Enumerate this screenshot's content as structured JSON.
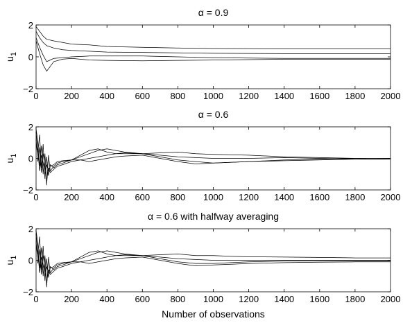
{
  "figure": {
    "xlabel": "Number of observations"
  },
  "chart_data": [
    {
      "type": "line",
      "title": "α = 0.9",
      "ylabel_main": "u",
      "ylabel_sub": "1",
      "xlim": [
        0,
        2000
      ],
      "ylim": [
        -2,
        2
      ],
      "xticks": [
        0,
        200,
        400,
        600,
        800,
        1000,
        1200,
        1400,
        1600,
        1800,
        2000
      ],
      "yticks": [
        -2,
        0,
        2
      ],
      "series": [
        {
          "x": [
            0,
            20,
            40,
            60,
            100,
            150,
            200,
            300,
            400,
            600,
            800,
            1000,
            1400,
            2000
          ],
          "y": [
            1.9,
            1.6,
            1.3,
            1.1,
            1.0,
            0.9,
            0.8,
            0.75,
            0.65,
            0.6,
            0.55,
            0.52,
            0.5,
            0.5
          ]
        },
        {
          "x": [
            0,
            20,
            40,
            60,
            100,
            150,
            200,
            300,
            400,
            600,
            800,
            1000,
            1400,
            2000
          ],
          "y": [
            1.6,
            1.2,
            0.9,
            0.7,
            0.55,
            0.45,
            0.4,
            0.35,
            0.3,
            0.28,
            0.25,
            0.22,
            0.2,
            0.2
          ]
        },
        {
          "x": [
            0,
            20,
            40,
            60,
            80,
            100,
            150,
            200,
            300,
            400,
            600,
            800,
            1000,
            1400,
            2000
          ],
          "y": [
            1.2,
            0.6,
            0.1,
            -0.3,
            -0.2,
            -0.1,
            -0.05,
            0.0,
            0.05,
            0.05,
            0.05,
            0.0,
            -0.05,
            -0.1,
            -0.1
          ]
        },
        {
          "x": [
            0,
            20,
            40,
            60,
            80,
            100,
            150,
            200,
            300,
            400,
            600,
            800,
            1000,
            1400,
            2000
          ],
          "y": [
            1.0,
            0.2,
            -0.5,
            -0.9,
            -0.6,
            -0.3,
            -0.15,
            -0.1,
            -0.2,
            -0.22,
            -0.25,
            -0.22,
            -0.2,
            -0.15,
            -0.15
          ]
        }
      ]
    },
    {
      "type": "line",
      "title": "α = 0.6",
      "ylabel_main": "u",
      "ylabel_sub": "1",
      "xlim": [
        0,
        2000
      ],
      "ylim": [
        -2,
        2
      ],
      "xticks": [
        0,
        200,
        400,
        600,
        800,
        1000,
        1200,
        1400,
        1600,
        1800,
        2000
      ],
      "yticks": [
        -2,
        0,
        2
      ],
      "series": [
        {
          "x": [
            0,
            10,
            20,
            30,
            40,
            50,
            60,
            70,
            80,
            100,
            120,
            150,
            200,
            250,
            300,
            350,
            400,
            450,
            500,
            600,
            700,
            800,
            900,
            1000,
            1200,
            1400,
            1600,
            1800,
            2000
          ],
          "y": [
            1.9,
            1.0,
            -0.5,
            0.8,
            -1.0,
            0.3,
            -1.7,
            0.2,
            -0.8,
            -0.5,
            -0.3,
            -0.2,
            -0.1,
            0.1,
            0.3,
            0.5,
            0.6,
            0.5,
            0.4,
            0.3,
            0.2,
            0.1,
            0.05,
            0.0,
            0.0,
            0.05,
            0.0,
            -0.05,
            -0.05
          ]
        },
        {
          "x": [
            0,
            10,
            20,
            30,
            40,
            50,
            60,
            70,
            80,
            100,
            120,
            150,
            200,
            250,
            300,
            350,
            400,
            450,
            500,
            600,
            700,
            800,
            900,
            1000,
            1200,
            1400,
            1600,
            1800,
            2000
          ],
          "y": [
            1.7,
            0.4,
            1.5,
            -0.6,
            0.9,
            -1.3,
            0.1,
            -1.1,
            -0.4,
            -0.6,
            -0.4,
            -0.3,
            -0.1,
            0.2,
            0.5,
            0.6,
            0.4,
            0.3,
            0.3,
            0.3,
            0.35,
            0.4,
            0.3,
            0.25,
            0.2,
            0.1,
            0.05,
            0.0,
            -0.05
          ]
        },
        {
          "x": [
            0,
            10,
            20,
            30,
            40,
            50,
            60,
            70,
            80,
            100,
            120,
            150,
            200,
            250,
            300,
            350,
            400,
            450,
            500,
            600,
            700,
            800,
            900,
            1000,
            1200,
            1400,
            1600,
            1800,
            2000
          ],
          "y": [
            1.2,
            -0.2,
            0.7,
            -0.9,
            0.3,
            -0.5,
            -1.4,
            -0.6,
            -0.9,
            -0.7,
            -0.5,
            -0.4,
            -0.2,
            -0.1,
            0.0,
            0.1,
            0.2,
            0.3,
            0.35,
            0.3,
            0.1,
            -0.1,
            -0.2,
            -0.3,
            -0.2,
            -0.15,
            -0.1,
            -0.05,
            0.0
          ]
        },
        {
          "x": [
            0,
            10,
            20,
            30,
            40,
            50,
            60,
            70,
            80,
            100,
            120,
            150,
            200,
            250,
            300,
            350,
            400,
            450,
            500,
            600,
            700,
            800,
            900,
            1000,
            1200,
            1400,
            1600,
            1800,
            2000
          ],
          "y": [
            0.8,
            0.5,
            -0.8,
            0.2,
            -0.3,
            -1.0,
            -0.4,
            -0.8,
            -0.5,
            -0.4,
            -0.2,
            -0.15,
            -0.1,
            -0.1,
            -0.2,
            -0.1,
            0.0,
            0.1,
            0.15,
            0.2,
            0.0,
            -0.2,
            -0.35,
            -0.3,
            -0.2,
            -0.1,
            -0.05,
            0.0,
            0.0
          ]
        }
      ]
    },
    {
      "type": "line",
      "title": "α = 0.6 with halfway averaging",
      "ylabel_main": "u",
      "ylabel_sub": "1",
      "xlim": [
        0,
        2000
      ],
      "ylim": [
        -2,
        2
      ],
      "xticks": [
        0,
        200,
        400,
        600,
        800,
        1000,
        1200,
        1400,
        1600,
        1800,
        2000
      ],
      "yticks": [
        -2,
        0,
        2
      ],
      "series": [
        {
          "x": [
            0,
            10,
            20,
            30,
            40,
            50,
            60,
            70,
            80,
            100,
            120,
            150,
            200,
            250,
            300,
            350,
            400,
            450,
            500,
            600,
            700,
            800,
            900,
            1000,
            1100,
            1200,
            1400,
            1600,
            1800,
            2000
          ],
          "y": [
            1.9,
            1.0,
            -0.5,
            0.8,
            -1.0,
            0.3,
            -1.7,
            0.2,
            -0.8,
            -0.5,
            -0.3,
            -0.2,
            -0.1,
            0.1,
            0.3,
            0.5,
            0.6,
            0.5,
            0.4,
            0.3,
            0.2,
            0.1,
            0.05,
            0.0,
            0.0,
            0.0,
            0.0,
            0.0,
            0.0,
            0.0
          ]
        },
        {
          "x": [
            0,
            10,
            20,
            30,
            40,
            50,
            60,
            70,
            80,
            100,
            120,
            150,
            200,
            250,
            300,
            350,
            400,
            450,
            500,
            600,
            700,
            800,
            900,
            1000,
            1100,
            1200,
            1400,
            1600,
            1800,
            2000
          ],
          "y": [
            1.7,
            0.4,
            1.5,
            -0.6,
            0.9,
            -1.3,
            0.1,
            -1.1,
            -0.4,
            -0.6,
            -0.4,
            -0.3,
            -0.1,
            0.2,
            0.5,
            0.6,
            0.4,
            0.3,
            0.3,
            0.3,
            0.35,
            0.4,
            0.3,
            0.3,
            0.25,
            0.22,
            0.2,
            0.18,
            0.15,
            0.15
          ]
        },
        {
          "x": [
            0,
            10,
            20,
            30,
            40,
            50,
            60,
            70,
            80,
            100,
            120,
            150,
            200,
            250,
            300,
            350,
            400,
            450,
            500,
            600,
            700,
            800,
            900,
            1000,
            1100,
            1200,
            1400,
            1600,
            1800,
            2000
          ],
          "y": [
            1.2,
            -0.2,
            0.7,
            -0.9,
            0.3,
            -0.5,
            -1.4,
            -0.6,
            -0.9,
            -0.7,
            -0.5,
            -0.4,
            -0.2,
            -0.1,
            0.0,
            0.1,
            0.2,
            0.3,
            0.35,
            0.3,
            0.1,
            -0.1,
            -0.2,
            -0.2,
            -0.15,
            -0.1,
            -0.05,
            -0.05,
            -0.05,
            -0.05
          ]
        },
        {
          "x": [
            0,
            10,
            20,
            30,
            40,
            50,
            60,
            70,
            80,
            100,
            120,
            150,
            200,
            250,
            300,
            350,
            400,
            450,
            500,
            600,
            700,
            800,
            900,
            1000,
            1100,
            1200,
            1400,
            1600,
            1800,
            2000
          ],
          "y": [
            0.8,
            0.5,
            -0.8,
            0.2,
            -0.3,
            -1.0,
            -0.4,
            -0.8,
            -0.5,
            -0.4,
            -0.2,
            -0.15,
            -0.1,
            -0.1,
            -0.2,
            -0.1,
            0.0,
            0.1,
            0.15,
            0.2,
            0.0,
            -0.2,
            -0.35,
            -0.3,
            -0.25,
            -0.2,
            -0.15,
            -0.12,
            -0.1,
            -0.1
          ]
        }
      ]
    }
  ]
}
